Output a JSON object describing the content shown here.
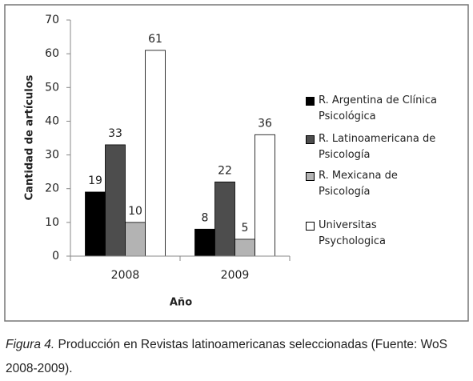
{
  "chart_data": {
    "type": "bar",
    "x_label": "Año",
    "y_label": "Cantidad de artículos",
    "categories": [
      "2008",
      "2009"
    ],
    "series": [
      {
        "name": "R. Argentina de Clínica Psicológica",
        "color": "#000000",
        "values": [
          19,
          8
        ]
      },
      {
        "name": "R. Latinoamericana de Psicología",
        "color": "#4d4d4d",
        "values": [
          33,
          22
        ]
      },
      {
        "name": "R. Mexicana de Psicología",
        "color": "#b3b3b3",
        "values": [
          10,
          5
        ]
      },
      {
        "name": "Universitas Psychologica",
        "color": "#ffffff",
        "values": [
          61,
          36
        ]
      }
    ],
    "ylim": [
      0,
      70
    ],
    "yticks": [
      0,
      10,
      20,
      30,
      40,
      50,
      60,
      70
    ],
    "grid": false,
    "legend": "right"
  },
  "figure_caption": {
    "label": "Figura 4.",
    "text": "Producción en Revistas latinoamericanas seleccionadas (Fuente: WoS 2008-2009)."
  }
}
